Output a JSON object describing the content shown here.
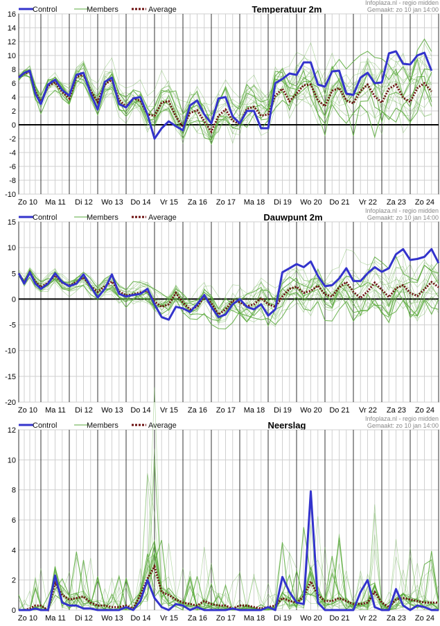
{
  "source_line1": "Infoplaza.nl - regio midden",
  "source_line2": "Gemaakt: zo 10 jan 14:00",
  "legend": {
    "control": "Control",
    "members": "Members",
    "average": "Average"
  },
  "colors": {
    "control": "#3333cc",
    "members": "#5aaa3c",
    "average": "#6b0f0f",
    "grid_major": "#333333",
    "grid_minor": "#cfcfcf"
  },
  "days": [
    "Zo 10",
    "Ma 11",
    "Di 12",
    "Wo 13",
    "Do 14",
    "Vr 15",
    "Za 16",
    "Zo 17",
    "Ma 18",
    "Di 19",
    "Wo 20",
    "Do 21",
    "Vr 22",
    "Za 23",
    "Zo 24"
  ],
  "chart_data": [
    {
      "type": "line",
      "title": "Temperatuur 2m",
      "ylim": [
        -10,
        16
      ],
      "yticks": [
        16,
        14,
        12,
        10,
        8,
        6,
        4,
        2,
        0,
        -2,
        -4,
        -6,
        -8,
        -10
      ],
      "x_interval_hours": 6,
      "series": [
        {
          "name": "Control",
          "values": [
            6.8,
            7.5,
            7.8,
            4.5,
            3,
            5.8,
            6.5,
            5,
            4.2,
            7.2,
            7.5,
            4.5,
            2.2,
            6.2,
            6.8,
            3,
            2.5,
            3.8,
            4,
            1.5,
            -2,
            -0.5,
            0.5,
            -0.2,
            -0.8,
            2.8,
            3.5,
            1.5,
            0.2,
            3.8,
            4,
            1.2,
            0.2,
            2,
            2,
            -0.5,
            -0.5,
            6,
            6.6,
            7.4,
            7.2,
            9,
            9,
            5.8,
            5.5,
            7.7,
            7.8,
            4.5,
            4.3,
            6.8,
            7.5,
            6,
            6.1,
            10.3,
            10.6,
            8.8,
            8.7,
            10,
            10.4,
            7.8
          ]
        },
        {
          "name": "Average",
          "values": [
            6.9,
            7.4,
            7.6,
            4.8,
            3.2,
            5.6,
            6.1,
            4.7,
            3.8,
            6.9,
            7.2,
            4.9,
            3.3,
            5.8,
            6.5,
            3.6,
            2.6,
            3.8,
            3.5,
            1.5,
            1.3,
            3.2,
            3.4,
            1.2,
            -0.3,
            1.7,
            2.1,
            0.5,
            -1,
            1.3,
            2.2,
            0.6,
            0.1,
            2.3,
            2.6,
            1.3,
            1.5,
            4.2,
            5.2,
            3.4,
            4.5,
            5.7,
            5.8,
            3.5,
            2.7,
            4.9,
            5.3,
            3.5,
            3.1,
            4.9,
            5.8,
            4.1,
            3.2,
            5.2,
            5.8,
            3.9,
            3.3,
            5.3,
            6,
            4.8
          ]
        }
      ]
    },
    {
      "type": "line",
      "title": "Dauwpunt 2m",
      "ylim": [
        -20,
        15
      ],
      "yticks": [
        15,
        10,
        5,
        0,
        -5,
        -10,
        -15,
        -20
      ],
      "x_interval_hours": 6,
      "series": [
        {
          "name": "Control",
          "values": [
            5,
            3,
            5.2,
            3,
            2,
            3,
            5,
            3.3,
            2.5,
            3,
            4.8,
            2.5,
            0.3,
            2,
            4.8,
            1,
            0.5,
            0.8,
            1,
            2,
            -1,
            -3.5,
            -4,
            -1.5,
            -1.8,
            -2.5,
            -1,
            0.8,
            -1.5,
            -3.5,
            -3,
            -1,
            0,
            -1.5,
            -2,
            -1,
            -3.2,
            -2,
            5.2,
            6,
            6.8,
            6.2,
            7.3,
            4.5,
            2.5,
            2.7,
            4,
            6,
            3.5,
            3.5,
            5,
            6.2,
            5.3,
            6,
            8.7,
            9.7,
            7.6,
            7.8,
            8.2,
            9.7,
            7
          ]
        },
        {
          "name": "Average",
          "values": [
            5,
            3.2,
            5.2,
            3.4,
            2.3,
            3.2,
            4.6,
            3.2,
            2.6,
            3.3,
            4.2,
            2.5,
            1.4,
            2.5,
            3.4,
            1.5,
            0.7,
            0.9,
            1.3,
            1.6,
            -0.5,
            -1.5,
            -1,
            1.2,
            -0.7,
            -2,
            -1.5,
            0.5,
            -0.8,
            -3,
            -2,
            -0.3,
            -0.6,
            -1.4,
            -1,
            0.2,
            -1,
            -1.5,
            0.5,
            2,
            2.4,
            1.2,
            1.6,
            2.6,
            0.9,
            0.5,
            2.3,
            3.3,
            1.4,
            0.2,
            1.5,
            3.2,
            1.8,
            0.4,
            2.1,
            2.7,
            1.2,
            0.6,
            1.9,
            3.3,
            2.3
          ]
        }
      ]
    },
    {
      "type": "line",
      "title": "Neerslag",
      "ylim": [
        0,
        12
      ],
      "yticks": [
        12,
        10,
        8,
        6,
        4,
        2,
        0
      ],
      "x_interval_hours": 6,
      "series": [
        {
          "name": "Control",
          "values": [
            0,
            0,
            0,
            0.1,
            0,
            0,
            2.3,
            0.5,
            0.3,
            0.3,
            0.1,
            0.1,
            0,
            0,
            0,
            0,
            0.2,
            0,
            0.6,
            2,
            0.8,
            0.2,
            0,
            0.4,
            0.3,
            0,
            0.2,
            0,
            0,
            0,
            0,
            0.1,
            0,
            0,
            0,
            0,
            0.2,
            0,
            2.2,
            1.2,
            0.5,
            0.4,
            7.9,
            0.5,
            0,
            0,
            0,
            0,
            0,
            1.2,
            2,
            0.2,
            0,
            0,
            1.4,
            0.3,
            0,
            0.3,
            0.2,
            0,
            0
          ]
        },
        {
          "name": "Average",
          "values": [
            0,
            0,
            0.1,
            0.3,
            0.3,
            0,
            1.8,
            1,
            0.7,
            0.8,
            0.9,
            0.5,
            0.3,
            0.3,
            0.2,
            0.2,
            0.3,
            0.1,
            1,
            2.1,
            2.9,
            1.2,
            1,
            0.7,
            0.5,
            0.4,
            0.3,
            0.6,
            0.4,
            0.3,
            0.3,
            0.1,
            0.3,
            0.3,
            0.2,
            0.1,
            0.2,
            0.3,
            0.8,
            0.6,
            0.5,
            0.9,
            1.9,
            1,
            0.6,
            0.6,
            0.8,
            0.6,
            0.4,
            0.4,
            0.5,
            1.2,
            0.5,
            0.2,
            0.7,
            0.8,
            0.7,
            0.6,
            0.5,
            0.5,
            0.5
          ]
        }
      ]
    }
  ]
}
